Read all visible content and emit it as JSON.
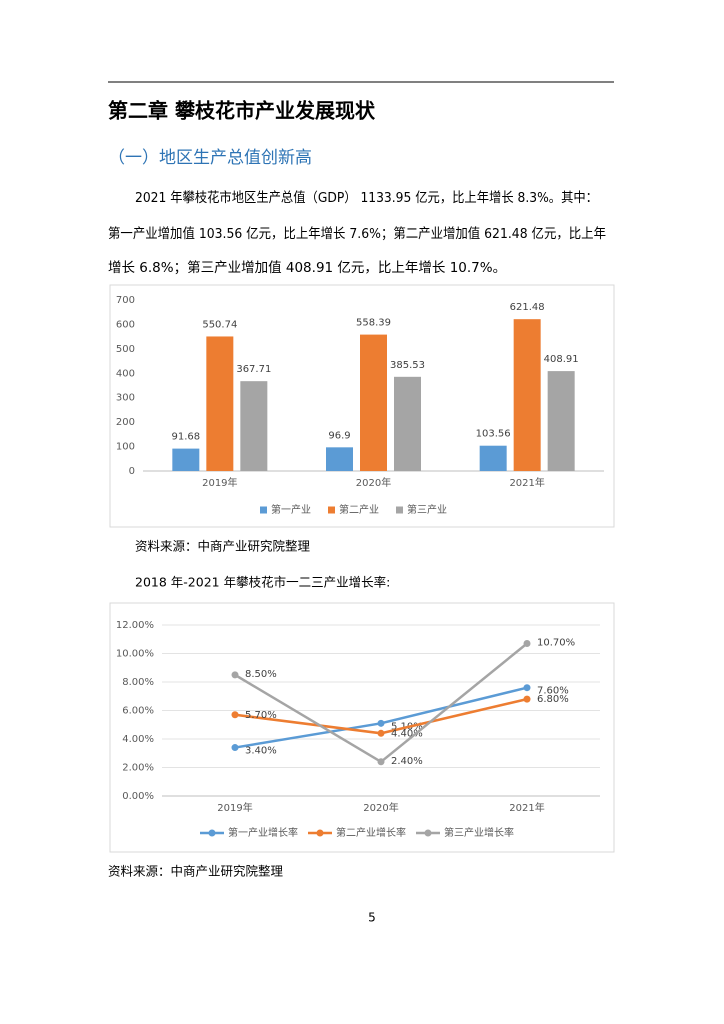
{
  "title": "第二章  攀枝花市产业发展现状",
  "section_heading": "（一）地区生产总值创新高",
  "paragraph": [
    "2021 年攀枝花市地区生产总值（GDP） 1133.95 亿元，比上年增长 8.3%。其中：",
    "第一产业增加值 103.56 亿元，比上年增长 7.6%；第二产业增加值 621.48 亿元，比上年",
    "增长 6.8%；第三产业增加值 408.91 亿元，比上年增长 10.7%。"
  ],
  "source_notes": [
    "资料来源：中商产业研究院整理",
    "资料来源：中商产业研究院整理"
  ],
  "chart_caption": "2018 年-2021 年攀枝花市一二三产业增长率:",
  "page_number": "5",
  "chart_data": [
    {
      "type": "bar",
      "categories": [
        "2019年",
        "2020年",
        "2021年"
      ],
      "series": [
        {
          "name": "第一产业",
          "color": "#5b9bd5",
          "values": [
            91.68,
            96.9,
            103.56
          ]
        },
        {
          "name": "第二产业",
          "color": "#ed7d31",
          "values": [
            550.74,
            558.39,
            621.48
          ]
        },
        {
          "name": "第三产业",
          "color": "#a5a5a5",
          "values": [
            367.71,
            385.53,
            408.91
          ]
        }
      ],
      "ylim": [
        0,
        700
      ],
      "yticks": [
        0,
        100,
        200,
        300,
        400,
        500,
        600,
        700
      ],
      "grid": false,
      "legend": "bottom"
    },
    {
      "type": "line",
      "categories": [
        "2019年",
        "2020年",
        "2021年"
      ],
      "series": [
        {
          "name": "第一产业增长率",
          "color": "#5b9bd5",
          "values": [
            3.4,
            5.1,
            7.6
          ],
          "value_labels": [
            "3.40%",
            "5.10%",
            "7.60%"
          ]
        },
        {
          "name": "第二产业增长率",
          "color": "#ed7d31",
          "values": [
            5.7,
            4.4,
            6.8
          ],
          "value_labels": [
            "5.70%",
            "4.40%",
            "6.80%"
          ]
        },
        {
          "name": "第三产业增长率",
          "color": "#a5a5a5",
          "values": [
            8.5,
            2.4,
            10.7
          ],
          "value_labels": [
            "8.50%",
            "2.40%",
            "10.70%"
          ]
        }
      ],
      "ylim": [
        0,
        12
      ],
      "yticks": [
        {
          "value": 0,
          "label": "0.00%"
        },
        {
          "value": 2,
          "label": "2.00%"
        },
        {
          "value": 4,
          "label": "4.00%"
        },
        {
          "value": 6,
          "label": "6.00%"
        },
        {
          "value": 8,
          "label": "8.00%"
        },
        {
          "value": 10,
          "label": "10.00%"
        },
        {
          "value": 12,
          "label": "12.00%"
        }
      ],
      "grid": true,
      "legend": "bottom"
    }
  ]
}
